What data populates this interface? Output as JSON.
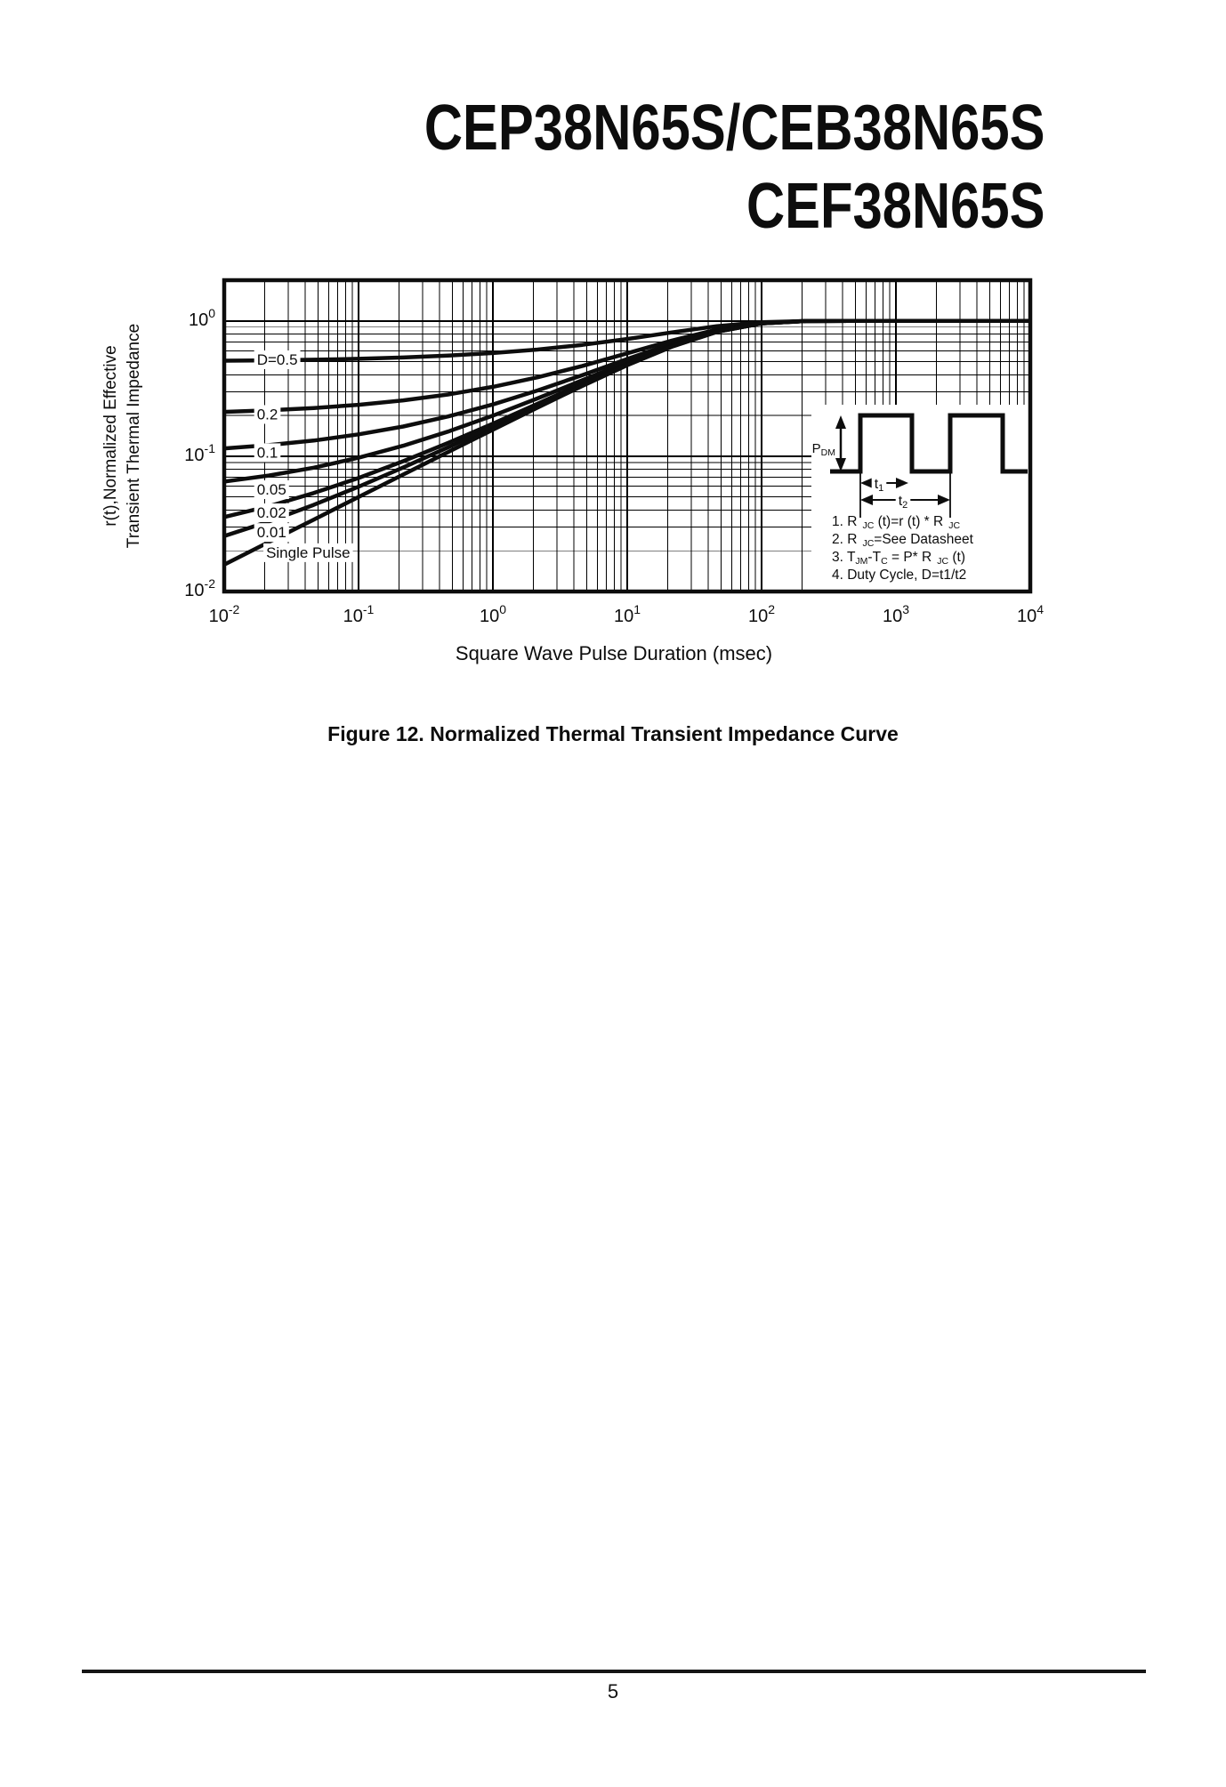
{
  "page": {
    "title_line1": "CEP38N65S/CEB38N65S",
    "title_line2": "CEF38N65S",
    "figure_caption": "Figure 12. Normalized Thermal Transient Impedance Curve",
    "page_number": "5"
  },
  "chart_data": {
    "type": "line",
    "title": "",
    "xlabel": "Square Wave Pulse Duration (msec)",
    "ylabel_lines": [
      "r(t),Normalized Effective",
      "Transient Thermal Impedance"
    ],
    "xlim": [
      0.01,
      10000
    ],
    "ylim": [
      0.01,
      2
    ],
    "x_scale": "log",
    "y_scale": "log",
    "grid": "log major+minor, on",
    "legend_position": "labels at left edge of curves",
    "x_tick_exponents": [
      -2,
      -1,
      0,
      1,
      2,
      3,
      4
    ],
    "y_tick_exponents": [
      0,
      -1,
      -2
    ],
    "x": [
      0.01,
      0.0215,
      0.0464,
      0.1,
      0.215,
      0.464,
      1,
      2.15,
      4.64,
      10,
      21.5,
      46.4,
      100,
      215,
      464,
      1000,
      2154,
      4642,
      10000
    ],
    "series": [
      {
        "name": "D=0.5",
        "values": [
          0.5079,
          0.5116,
          0.517,
          0.525,
          0.5366,
          0.5537,
          0.5786,
          0.6144,
          0.6655,
          0.7352,
          0.8224,
          0.9143,
          0.979,
          0.9988,
          1,
          1,
          1,
          1,
          1
        ]
      },
      {
        "name": "0.2",
        "values": [
          0.2126,
          0.2185,
          0.2272,
          0.24,
          0.2586,
          0.2859,
          0.3257,
          0.383,
          0.4648,
          0.5763,
          0.7158,
          0.8628,
          0.9665,
          0.9981,
          1,
          1,
          1,
          1,
          1
        ]
      },
      {
        "name": "0.1",
        "values": [
          0.1142,
          0.1209,
          0.1306,
          0.145,
          0.1659,
          0.1967,
          0.2414,
          0.3059,
          0.3978,
          0.5233,
          0.6803,
          0.8457,
          0.9623,
          0.9979,
          1,
          1,
          1,
          1,
          1
        ]
      },
      {
        "name": "0.05",
        "values": [
          0.065,
          0.072,
          0.0823,
          0.0975,
          0.1196,
          0.152,
          0.1993,
          0.2673,
          0.3644,
          0.4968,
          0.6626,
          0.8371,
          0.9602,
          0.9978,
          1,
          1,
          1,
          1,
          1
        ]
      },
      {
        "name": "0.02",
        "values": [
          0.0355,
          0.0427,
          0.0534,
          0.069,
          0.0918,
          0.1252,
          0.174,
          0.2442,
          0.3443,
          0.4809,
          0.6519,
          0.832,
          0.9589,
          0.9977,
          1,
          1,
          1,
          1,
          1
        ]
      },
      {
        "name": "0.01",
        "values": [
          0.0257,
          0.0329,
          0.0437,
          0.0595,
          0.0825,
          0.1163,
          0.1656,
          0.2365,
          0.3376,
          0.4756,
          0.6484,
          0.8303,
          0.9585,
          0.9977,
          1,
          1,
          1,
          1,
          1
        ]
      },
      {
        "name": "Single Pulse",
        "values": [
          0.0158,
          0.0232,
          0.034,
          0.05,
          0.0732,
          0.1074,
          0.1571,
          0.2288,
          0.3309,
          0.4703,
          0.6448,
          0.8285,
          0.9581,
          0.9977,
          1,
          1,
          1,
          1,
          1
        ]
      }
    ],
    "curve_labels": [
      {
        "text": "D=0.5",
        "x": 0.0175,
        "y": 0.52
      },
      {
        "text": "0.2",
        "x": 0.0175,
        "y": 0.205
      },
      {
        "text": "0.1",
        "x": 0.0175,
        "y": 0.107
      },
      {
        "text": "0.05",
        "x": 0.0175,
        "y": 0.057
      },
      {
        "text": "0.02",
        "x": 0.0175,
        "y": 0.0385
      },
      {
        "text": "0.01",
        "x": 0.0175,
        "y": 0.0275
      },
      {
        "text": "Single Pulse",
        "x": 0.0205,
        "y": 0.0195
      }
    ],
    "inset": {
      "pdm": [
        {
          "t": "P"
        },
        {
          "t": "DM",
          "s": 1
        }
      ],
      "t1": [
        {
          "t": "t"
        },
        {
          "t": "1",
          "s": 1
        }
      ],
      "t2": [
        {
          "t": "t"
        },
        {
          "t": "2",
          "s": 1
        }
      ],
      "notes": [
        [
          {
            "t": "1. R"
          },
          {
            "t": "JC",
            "s": 1,
            "dx": 6
          },
          {
            "t": " (t)=r (t) * R"
          },
          {
            "t": "JC",
            "s": 1,
            "dx": 6
          }
        ],
        [
          {
            "t": "2. R"
          },
          {
            "t": "JC",
            "s": 1,
            "dx": 6
          },
          {
            "t": "=See Datasheet"
          }
        ],
        [
          {
            "t": "3. T"
          },
          {
            "t": "JM",
            "s": 1
          },
          {
            "t": "-T"
          },
          {
            "t": "C",
            "s": 1
          },
          {
            "t": " = P* R"
          },
          {
            "t": "JC",
            "s": 1,
            "dx": 6
          },
          {
            "t": " (t)"
          }
        ],
        [
          {
            "t": "4. Duty Cycle, D=t1/t2"
          }
        ]
      ]
    },
    "colors": {
      "line": "#0d0d0d",
      "grid": "#000000",
      "background": "#ffffff"
    }
  }
}
